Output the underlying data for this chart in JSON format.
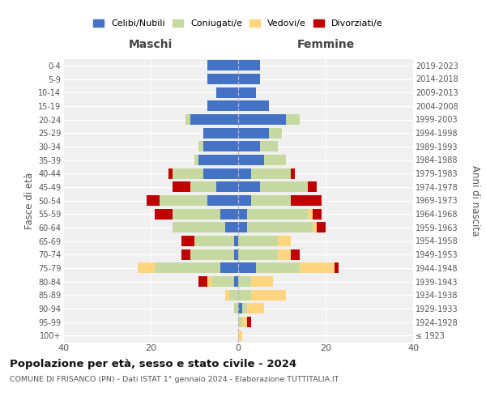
{
  "age_groups": [
    "100+",
    "95-99",
    "90-94",
    "85-89",
    "80-84",
    "75-79",
    "70-74",
    "65-69",
    "60-64",
    "55-59",
    "50-54",
    "45-49",
    "40-44",
    "35-39",
    "30-34",
    "25-29",
    "20-24",
    "15-19",
    "10-14",
    "5-9",
    "0-4"
  ],
  "birth_years": [
    "≤ 1923",
    "1924-1928",
    "1929-1933",
    "1934-1938",
    "1939-1943",
    "1944-1948",
    "1949-1953",
    "1954-1958",
    "1959-1963",
    "1964-1968",
    "1969-1973",
    "1974-1978",
    "1979-1983",
    "1984-1988",
    "1989-1993",
    "1994-1998",
    "1999-2003",
    "2004-2008",
    "2009-2013",
    "2014-2018",
    "2019-2023"
  ],
  "males": {
    "celibi": [
      0,
      0,
      0,
      0,
      1,
      4,
      1,
      1,
      3,
      4,
      7,
      5,
      8,
      9,
      8,
      8,
      11,
      7,
      5,
      7,
      7
    ],
    "coniugati": [
      0,
      0,
      1,
      2,
      5,
      15,
      10,
      9,
      12,
      11,
      11,
      6,
      7,
      1,
      1,
      0,
      1,
      0,
      0,
      0,
      0
    ],
    "vedovi": [
      0,
      0,
      0,
      1,
      1,
      4,
      0,
      0,
      0,
      0,
      0,
      0,
      0,
      0,
      0,
      0,
      0,
      0,
      0,
      0,
      0
    ],
    "divorziati": [
      0,
      0,
      0,
      0,
      2,
      0,
      2,
      3,
      0,
      4,
      3,
      4,
      1,
      0,
      0,
      0,
      0,
      0,
      0,
      0,
      0
    ]
  },
  "females": {
    "nubili": [
      0,
      0,
      1,
      0,
      0,
      4,
      0,
      0,
      2,
      2,
      3,
      5,
      3,
      6,
      5,
      7,
      11,
      7,
      4,
      5,
      5
    ],
    "coniugate": [
      0,
      1,
      1,
      3,
      3,
      10,
      9,
      9,
      15,
      14,
      9,
      11,
      9,
      5,
      4,
      3,
      3,
      0,
      0,
      0,
      0
    ],
    "vedove": [
      1,
      1,
      4,
      8,
      5,
      8,
      3,
      3,
      1,
      1,
      0,
      0,
      0,
      0,
      0,
      0,
      0,
      0,
      0,
      0,
      0
    ],
    "divorziate": [
      0,
      1,
      0,
      0,
      0,
      1,
      2,
      0,
      2,
      2,
      7,
      2,
      1,
      0,
      0,
      0,
      0,
      0,
      0,
      0,
      0
    ]
  },
  "colors": {
    "celibi": "#4472c4",
    "coniugati": "#c5d9a0",
    "vedovi": "#ffd580",
    "divorziati": "#c00000"
  },
  "xlim": 40,
  "title": "Popolazione per età, sesso e stato civile - 2024",
  "subtitle": "COMUNE DI FRISANCO (PN) - Dati ISTAT 1° gennaio 2024 - Elaborazione TUTTITALIA.IT",
  "ylabel_left": "Fasce di età",
  "ylabel_right": "Anni di nascita",
  "xlabel_left": "Maschi",
  "xlabel_right": "Femmine",
  "bg_color": "#f0f0f0",
  "legend_labels": [
    "Celibi/Nubili",
    "Coniugati/e",
    "Vedovi/e",
    "Divorziati/e"
  ]
}
